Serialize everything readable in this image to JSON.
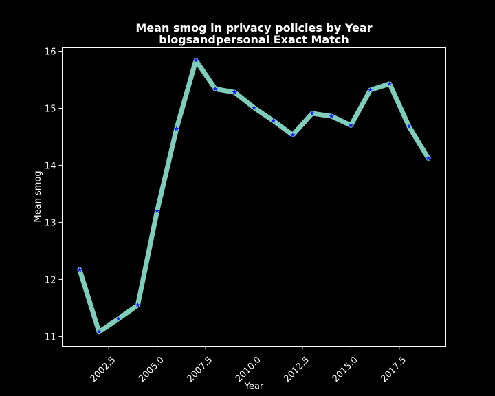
{
  "chart_data": {
    "type": "line",
    "title": "Mean smog in privacy policies by Year",
    "subtitle": "blogsandpersonal Exact Match",
    "xlabel": "Year",
    "ylabel": "Mean smog",
    "xlim": [
      2000.1,
      2019.9
    ],
    "ylim": [
      10.83,
      16.06
    ],
    "xticks": [
      2002.5,
      2005.0,
      2007.5,
      2010.0,
      2012.5,
      2015.0,
      2017.5
    ],
    "xtick_labels": [
      "2002.5",
      "2005.0",
      "2007.5",
      "2010.0",
      "2012.5",
      "2015.0",
      "2017.5"
    ],
    "yticks": [
      11,
      12,
      13,
      14,
      15,
      16
    ],
    "ytick_labels": [
      "11",
      "12",
      "13",
      "14",
      "15",
      "16"
    ],
    "grid": false,
    "series": [
      {
        "x": [
          2001,
          2002,
          2003,
          2004,
          2005,
          2006,
          2007,
          2008,
          2009,
          2010,
          2011,
          2012,
          2013,
          2014,
          2015,
          2016,
          2017,
          2018,
          2019
        ],
        "values": [
          12.17,
          11.08,
          11.31,
          11.55,
          13.2,
          14.64,
          15.84,
          15.34,
          15.28,
          15.01,
          14.78,
          14.53,
          14.91,
          14.86,
          14.7,
          15.32,
          15.43,
          14.68,
          14.12
        ],
        "line_color": "#7fcdbb",
        "marker_color": "#1a1aff",
        "marker": "star"
      }
    ],
    "colors": {
      "background": "#000000",
      "text": "#ffffff",
      "axes": "#ffffff"
    }
  }
}
